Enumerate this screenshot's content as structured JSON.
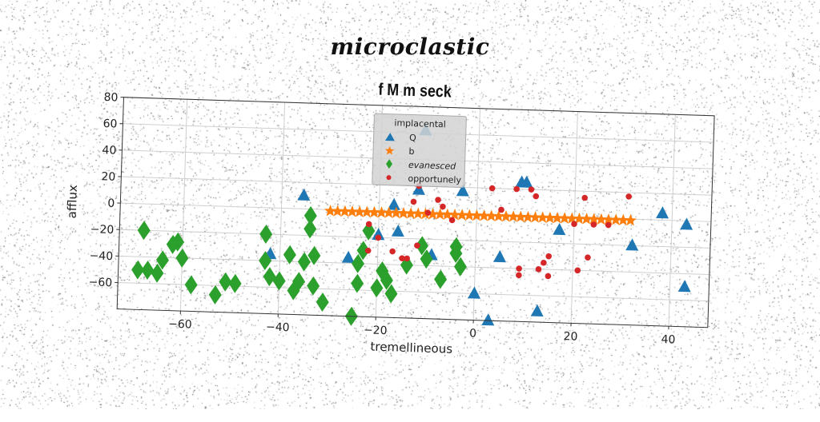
{
  "suptitle": "microclastic",
  "chart_data": {
    "type": "scatter",
    "title": "f M m seck",
    "xlabel": "tremellineous",
    "ylabel": "afflux",
    "xlim": [
      -73,
      48
    ],
    "ylim": [
      -80,
      80
    ],
    "xticks": [
      -60,
      -40,
      -20,
      0,
      20,
      40
    ],
    "yticks": [
      -60,
      -40,
      -20,
      0,
      20,
      40,
      60,
      80
    ],
    "grid": true,
    "legend": {
      "title": "implacental",
      "placement": "top-center"
    },
    "series": [
      {
        "name": "Q",
        "marker": "triangle",
        "color": "#1f77b4",
        "points": [
          [
            -35.5,
            10
          ],
          [
            -42,
            -35
          ],
          [
            -26,
            -36
          ],
          [
            -20,
            -18
          ],
          [
            -17,
            5
          ],
          [
            -16,
            -15
          ],
          [
            -12,
            17
          ],
          [
            -11,
            62
          ],
          [
            -9,
            -32
          ],
          [
            -3,
            17
          ],
          [
            0,
            -60
          ],
          [
            3,
            -80
          ],
          [
            5,
            -32
          ],
          [
            9,
            25
          ],
          [
            10,
            25
          ],
          [
            13,
            -72
          ],
          [
            17,
            -10
          ],
          [
            32,
            -20
          ],
          [
            38,
            5
          ],
          [
            43,
            -3
          ],
          [
            43,
            -50
          ]
        ]
      },
      {
        "name": "b",
        "marker": "star",
        "color": "#ff7f0e",
        "points": [
          [
            -30,
            -1
          ],
          [
            -28.5,
            -1
          ],
          [
            -27,
            -1
          ],
          [
            -25.5,
            -1
          ],
          [
            -24,
            -1
          ],
          [
            -22.5,
            -1
          ],
          [
            -21,
            -1
          ],
          [
            -19.5,
            -1
          ],
          [
            -18,
            -1
          ],
          [
            -16.5,
            -1
          ],
          [
            -15,
            -1
          ],
          [
            -13.5,
            -1
          ],
          [
            -12,
            -1
          ],
          [
            -10.5,
            -1
          ],
          [
            -9,
            -1
          ],
          [
            -7.5,
            -1
          ],
          [
            -6,
            -1
          ],
          [
            -4.5,
            -1
          ],
          [
            -3,
            -1
          ],
          [
            -1.5,
            -1
          ],
          [
            0,
            -1
          ],
          [
            1.5,
            -1
          ],
          [
            3,
            -1
          ],
          [
            4.5,
            -1
          ],
          [
            6,
            -1
          ],
          [
            7.5,
            -1
          ],
          [
            9,
            -1
          ],
          [
            10.5,
            -1
          ],
          [
            12,
            -1
          ],
          [
            13.5,
            -1
          ],
          [
            15,
            -1
          ],
          [
            16.5,
            -1
          ],
          [
            18,
            -1
          ],
          [
            19.5,
            -1
          ],
          [
            21,
            -1
          ],
          [
            22.5,
            -1
          ],
          [
            24,
            -1
          ],
          [
            25.5,
            -1
          ],
          [
            27,
            -1
          ],
          [
            28.5,
            -1
          ],
          [
            30,
            -1
          ],
          [
            31.5,
            -1
          ]
        ]
      },
      {
        "name": "evanesced",
        "marker": "diamond",
        "color": "#2ca02c",
        "points": [
          [
            -68,
            -20
          ],
          [
            -69,
            -50
          ],
          [
            -67,
            -50
          ],
          [
            -65,
            -52
          ],
          [
            -64,
            -42
          ],
          [
            -62,
            -30
          ],
          [
            -61,
            -28
          ],
          [
            -60,
            -40
          ],
          [
            -58,
            -60
          ],
          [
            -53,
            -67
          ],
          [
            -51,
            -57
          ],
          [
            -49,
            -58
          ],
          [
            -43,
            -20
          ],
          [
            -43,
            -40
          ],
          [
            -42,
            -52
          ],
          [
            -40,
            -55
          ],
          [
            -38,
            -35
          ],
          [
            -37,
            -62
          ],
          [
            -36,
            -55
          ],
          [
            -35,
            -40
          ],
          [
            -34,
            -15
          ],
          [
            -34,
            -5
          ],
          [
            -33,
            -35
          ],
          [
            -33,
            -58
          ],
          [
            -31,
            -70
          ],
          [
            -25,
            -80
          ],
          [
            -24,
            -40
          ],
          [
            -24,
            -55
          ],
          [
            -23,
            -30
          ],
          [
            -22,
            -15
          ],
          [
            -20,
            -58
          ],
          [
            -19,
            -45
          ],
          [
            -18,
            -52
          ],
          [
            -17,
            -62
          ],
          [
            -14,
            -40
          ],
          [
            -11,
            -25
          ],
          [
            -10,
            -35
          ],
          [
            -7,
            -50
          ],
          [
            -4,
            -25
          ],
          [
            -4,
            -30
          ],
          [
            -3,
            -40
          ]
        ]
      },
      {
        "name": "opportunely",
        "marker": "circle",
        "color": "#d62728",
        "points": [
          [
            -22,
            -10
          ],
          [
            -22,
            -30
          ],
          [
            -20,
            -20
          ],
          [
            -17,
            -30
          ],
          [
            -15,
            -35
          ],
          [
            -14,
            -35
          ],
          [
            -13,
            8
          ],
          [
            -12,
            20
          ],
          [
            -12,
            -25
          ],
          [
            -10,
            0
          ],
          [
            -8,
            10
          ],
          [
            -7,
            5
          ],
          [
            -5,
            -5
          ],
          [
            3,
            20
          ],
          [
            5,
            4
          ],
          [
            8,
            20
          ],
          [
            9,
            -40
          ],
          [
            9,
            -45
          ],
          [
            11,
            20
          ],
          [
            12,
            15
          ],
          [
            13,
            -40
          ],
          [
            14,
            -35
          ],
          [
            15,
            -30
          ],
          [
            15,
            -45
          ],
          [
            20,
            -5
          ],
          [
            21,
            -40
          ],
          [
            22,
            15
          ],
          [
            23,
            -30
          ],
          [
            24,
            -5
          ],
          [
            27,
            -5
          ],
          [
            31,
            17
          ]
        ]
      }
    ]
  }
}
